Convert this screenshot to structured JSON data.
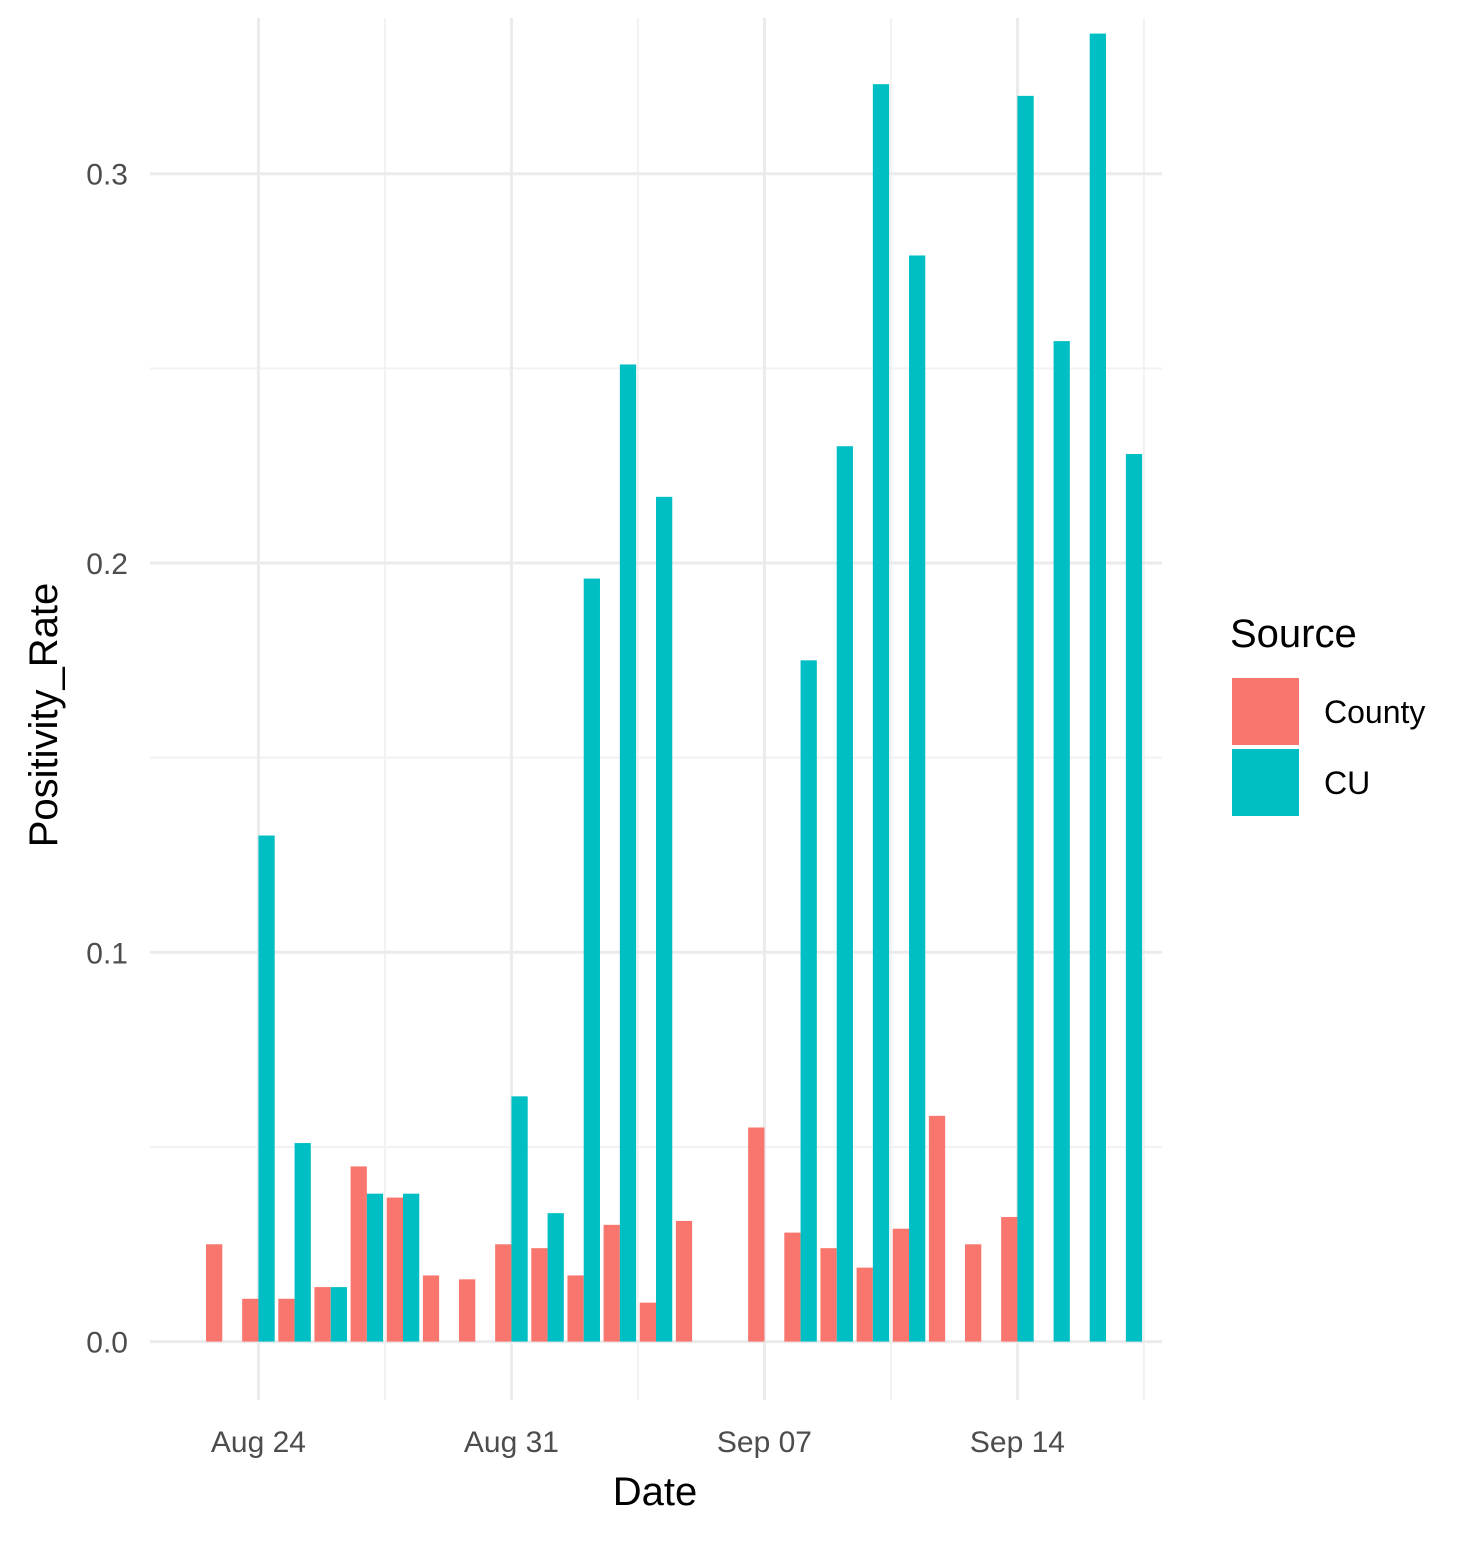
{
  "chart_data": {
    "type": "bar",
    "xlabel": "Date",
    "ylabel": "Positivity_Rate",
    "ylim": [
      -0.015,
      0.34
    ],
    "y_ticks": [
      "0.0",
      "0.1",
      "0.2",
      "0.3"
    ],
    "y_tick_values": [
      0.0,
      0.1,
      0.2,
      0.3
    ],
    "x_ticks": [
      "Aug 24",
      "Aug 31",
      "Sep 07",
      "Sep 14"
    ],
    "x_tick_dates": [
      "2020-08-24",
      "2020-08-31",
      "2020-09-07",
      "2020-09-14"
    ],
    "xlim": [
      "2020-08-21",
      "2020-09-18"
    ],
    "grid": true,
    "legend": {
      "title": "Source",
      "position": "right",
      "entries": [
        {
          "name": "County",
          "color": "#F8766D"
        },
        {
          "name": "CU",
          "color": "#00BFC4"
        }
      ]
    },
    "series": [
      {
        "name": "County",
        "color": "#F8766D",
        "points": [
          {
            "x": "2020-08-23",
            "y": 0.025
          },
          {
            "x": "2020-08-24",
            "y": 0.011
          },
          {
            "x": "2020-08-25",
            "y": 0.011
          },
          {
            "x": "2020-08-26",
            "y": 0.014
          },
          {
            "x": "2020-08-27",
            "y": 0.045
          },
          {
            "x": "2020-08-28",
            "y": 0.037
          },
          {
            "x": "2020-08-29",
            "y": 0.017
          },
          {
            "x": "2020-08-30",
            "y": 0.016
          },
          {
            "x": "2020-08-31",
            "y": 0.025
          },
          {
            "x": "2020-09-01",
            "y": 0.024
          },
          {
            "x": "2020-09-02",
            "y": 0.017
          },
          {
            "x": "2020-09-03",
            "y": 0.03
          },
          {
            "x": "2020-09-04",
            "y": 0.01
          },
          {
            "x": "2020-09-05",
            "y": 0.031
          },
          {
            "x": "2020-09-07",
            "y": 0.055
          },
          {
            "x": "2020-09-08",
            "y": 0.028
          },
          {
            "x": "2020-09-09",
            "y": 0.024
          },
          {
            "x": "2020-09-10",
            "y": 0.019
          },
          {
            "x": "2020-09-11",
            "y": 0.029
          },
          {
            "x": "2020-09-12",
            "y": 0.058
          },
          {
            "x": "2020-09-13",
            "y": 0.025
          },
          {
            "x": "2020-09-14",
            "y": 0.032
          }
        ]
      },
      {
        "name": "CU",
        "color": "#00BFC4",
        "points": [
          {
            "x": "2020-08-24",
            "y": 0.13
          },
          {
            "x": "2020-08-25",
            "y": 0.051
          },
          {
            "x": "2020-08-26",
            "y": 0.014
          },
          {
            "x": "2020-08-27",
            "y": 0.038
          },
          {
            "x": "2020-08-28",
            "y": 0.038
          },
          {
            "x": "2020-08-31",
            "y": 0.063
          },
          {
            "x": "2020-09-01",
            "y": 0.033
          },
          {
            "x": "2020-09-02",
            "y": 0.196
          },
          {
            "x": "2020-09-03",
            "y": 0.251
          },
          {
            "x": "2020-09-04",
            "y": 0.217
          },
          {
            "x": "2020-09-08",
            "y": 0.175
          },
          {
            "x": "2020-09-09",
            "y": 0.23
          },
          {
            "x": "2020-09-10",
            "y": 0.323
          },
          {
            "x": "2020-09-11",
            "y": 0.279
          },
          {
            "x": "2020-09-14",
            "y": 0.32
          },
          {
            "x": "2020-09-15",
            "y": 0.257
          },
          {
            "x": "2020-09-16",
            "y": 0.336
          },
          {
            "x": "2020-09-17",
            "y": 0.228
          }
        ]
      }
    ]
  }
}
